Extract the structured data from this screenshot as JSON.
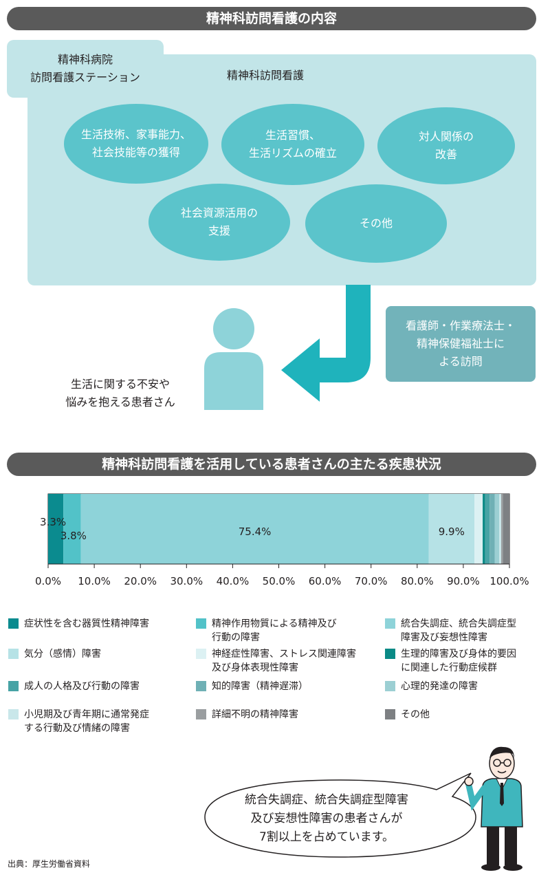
{
  "section1": {
    "banner": "精神科訪問看護の内容",
    "station_line1": "精神科病院",
    "station_line2": "訪問看護ステーション",
    "visit_title": "精神科訪問看護",
    "services": [
      {
        "line1": "生活技術、家事能力、",
        "line2": "社会技能等の獲得"
      },
      {
        "line1": "生活習慣、",
        "line2": "生活リズムの確立"
      },
      {
        "line1": "対人関係の",
        "line2": "改善"
      },
      {
        "line1": "社会資源活用の",
        "line2": "支援"
      },
      {
        "line1": "その他",
        "line2": ""
      }
    ],
    "staff_line1": "看護師・作業療法士・",
    "staff_line2": "精神保健福祉士に",
    "staff_line3": "よる訪問",
    "patient_line1": "生活に関する不安や",
    "patient_line2": "悩みを抱える患者さん"
  },
  "section2": {
    "banner": "精神科訪問看護を活用している患者さんの主たる疾患状況"
  },
  "chart_data": {
    "type": "bar",
    "orientation": "horizontal",
    "stacked": true,
    "xlim": [
      0,
      100
    ],
    "x_ticks": [
      "0.0%",
      "10.0%",
      "20.0%",
      "30.0%",
      "40.0%",
      "50.0%",
      "60.0%",
      "70.0%",
      "80.0%",
      "90.0%",
      "100.0%"
    ],
    "series": [
      {
        "name": "症状性を含む器質性精神障害",
        "value": 3.3,
        "color": "#0b8b8f",
        "label": "3.3%"
      },
      {
        "name": "精神作用物質による精神及び行動の障害",
        "value": 3.8,
        "color": "#52c2c8",
        "label": "3.8%"
      },
      {
        "name": "統合失調症、統合失調症型障害及び妄想性障害",
        "value": 75.4,
        "color": "#8ed3d9",
        "label": "75.4%"
      },
      {
        "name": "気分（感情）障害",
        "value": 9.9,
        "color": "#b6e2e6",
        "label": "9.9%"
      },
      {
        "name": "神経症性障害、ストレス関連障害及び身体表現性障害",
        "value": 1.8,
        "color": "#dcf1f3",
        "label": ""
      },
      {
        "name": "生理的障害及び身体的要因に関連した行動症候群",
        "value": 0.5,
        "color": "#0a8a86",
        "label": ""
      },
      {
        "name": "成人の人格及び行動の障害",
        "value": 1.0,
        "color": "#47a3a5",
        "label": ""
      },
      {
        "name": "知的障害（精神遅滞）",
        "value": 1.1,
        "color": "#6fb0b5",
        "label": ""
      },
      {
        "name": "心理的発達の障害",
        "value": 1.0,
        "color": "#9ccfd3",
        "label": ""
      },
      {
        "name": "小児期及び青年期に通常発症する行動及び情緒の障害",
        "value": 0.4,
        "color": "#c9e7ea",
        "label": ""
      },
      {
        "name": "詳細不明の精神障害",
        "value": 0.4,
        "color": "#9a9ea0",
        "label": ""
      },
      {
        "name": "その他",
        "value": 1.4,
        "color": "#7d8083",
        "label": ""
      }
    ]
  },
  "legend_lines": [
    [
      "症状性を含む器質性精神障害"
    ],
    [
      "精神作用物質による精神及び",
      "行動の障害"
    ],
    [
      "統合失調症、統合失調症型",
      "障害及び妄想性障害"
    ],
    [
      "気分（感情）障害"
    ],
    [
      "神経症性障害、ストレス関連障害",
      "及び身体表現性障害"
    ],
    [
      "生理的障害及び身体的要因",
      "に関連した行動症候群"
    ],
    [
      "成人の人格及び行動の障害"
    ],
    [
      "知的障害（精神遅滞）"
    ],
    [
      "心理的発達の障害"
    ],
    [
      "小児期及び青年期に通常発症",
      "する行動及び情緒の障害"
    ],
    [
      "詳細不明の精神障害"
    ],
    [
      "その他"
    ]
  ],
  "callout": {
    "line1": "統合失調症、統合失調症型障害",
    "line2": "及び妄想性障害の患者さんが",
    "line3": "7割以上を占めています。"
  },
  "source": "出典：厚生労働省資料"
}
